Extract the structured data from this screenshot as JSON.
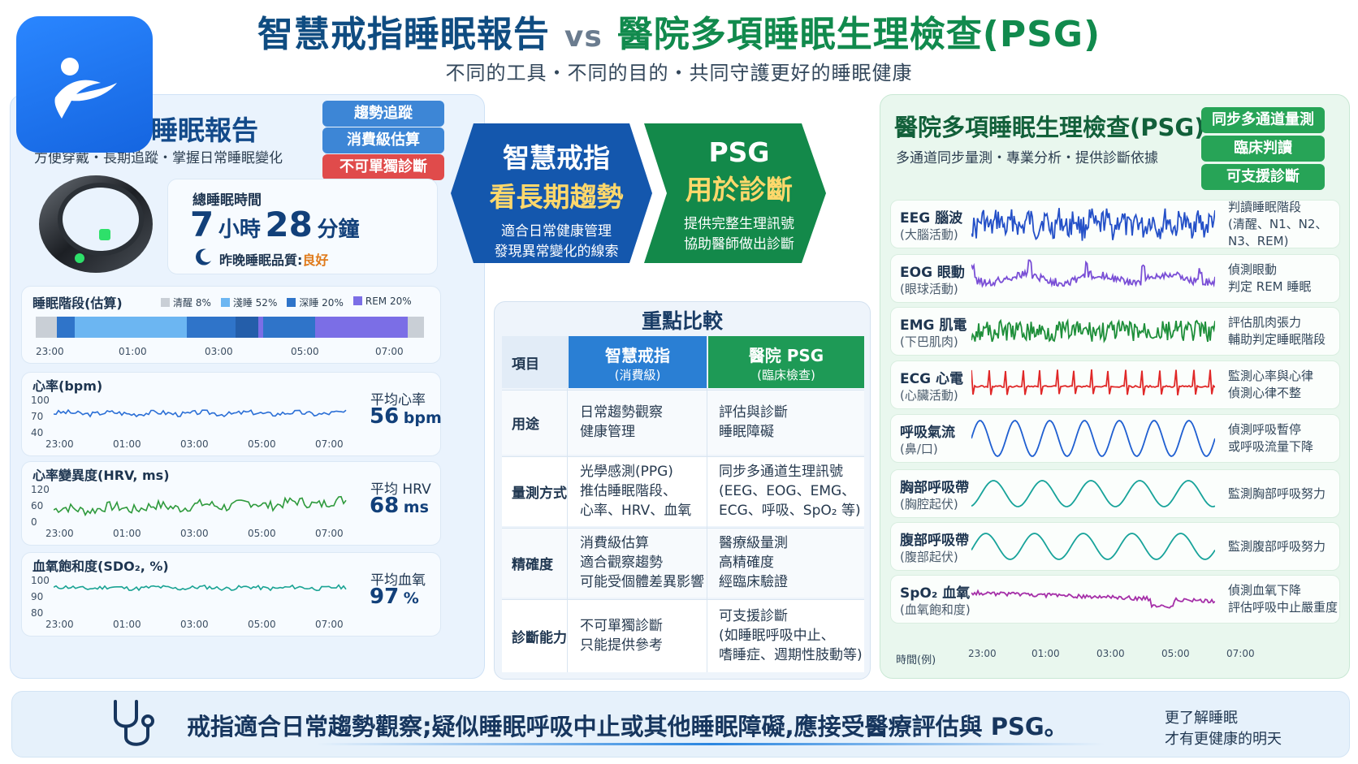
{
  "header": {
    "title_left": "智慧戒指睡眠報告",
    "vs": "vs",
    "title_right": "醫院多項睡眠生理檢查(PSG)",
    "subtitle": "不同的工具・不同的目的・共同守護更好的睡眠健康"
  },
  "left": {
    "title": "睡眠報告",
    "subtitle": "方便穿戴・長期追蹤・掌握日常睡眠變化",
    "tags": [
      "趨勢追蹤",
      "消費級估算",
      "不可單獨診斷"
    ],
    "total_sleep_label": "總睡眠時間",
    "hours": "7",
    "hours_unit": "小時",
    "minutes": "28",
    "minutes_unit": "分鐘",
    "quality_label": "昨晚睡眠品質:",
    "quality_value": "良好",
    "stages": {
      "label": "睡眠階段(估算)",
      "legend": [
        {
          "name": "清醒 8%",
          "color": "#c9cfd6"
        },
        {
          "name": "淺睡 52%",
          "color": "#6cb6f2"
        },
        {
          "name": "深睡 20%",
          "color": "#2f74c9"
        },
        {
          "name": "REM 20%",
          "color": "#7b6ee6"
        }
      ],
      "times": [
        "23:00",
        "01:00",
        "03:00",
        "05:00",
        "07:00"
      ]
    },
    "heart_rate": {
      "label": "心率(bpm)",
      "y_ticks": [
        "100",
        "70",
        "40"
      ],
      "avg_label": "平均心率",
      "avg_value": "56",
      "avg_unit": "bpm",
      "color": "#2b6fd6"
    },
    "hrv": {
      "label": "心率變異度(HRV, ms)",
      "y_ticks": [
        "120",
        "60",
        "0"
      ],
      "avg_label": "平均 HRV",
      "avg_value": "68",
      "avg_unit": "ms",
      "color": "#2e9a3c"
    },
    "spo2": {
      "label": "血氧飽和度(SDO₂, %)",
      "y_ticks": [
        "100",
        "90",
        "80"
      ],
      "avg_label": "平均血氧",
      "avg_value": "97",
      "avg_unit": "%",
      "color": "#1aa394"
    },
    "chart_times": [
      "23:00",
      "01:00",
      "03:00",
      "05:00",
      "07:00"
    ]
  },
  "center": {
    "ring_title": "智慧戒指",
    "ring_headline": "看長期趨勢",
    "ring_desc": [
      "適合日常健康管理",
      "發現異常變化的線索"
    ],
    "psg_title": "PSG",
    "psg_headline": "用於診斷",
    "psg_desc": [
      "提供完整生理訊號",
      "協助醫師做出診斷"
    ],
    "compare_title": "重點比較",
    "col_item": "項目",
    "col_ring": "智慧戒指",
    "col_ring_sub": "(消費級)",
    "col_psg": "醫院 PSG",
    "col_psg_sub": "(臨床檢查)",
    "rows": [
      {
        "label": "用途",
        "ring": [
          "日常趨勢觀察",
          "健康管理"
        ],
        "psg": [
          "評估與診斷",
          "睡眠障礙"
        ]
      },
      {
        "label": "量測方式",
        "ring": [
          "光學感測(PPG)",
          "推估睡眠階段、",
          "心率、HRV、血氧"
        ],
        "psg": [
          "同步多通道生理訊號",
          "(EEG、EOG、EMG、",
          "ECG、呼吸、SpO₂ 等)"
        ]
      },
      {
        "label": "精確度",
        "ring": [
          "消費級估算",
          "適合觀察趨勢",
          "可能受個體差異影響"
        ],
        "psg": [
          "醫療級量測",
          "高精確度",
          "經臨床驗證"
        ]
      },
      {
        "label": "診斷能力",
        "ring": [
          "不可單獨診斷",
          "只能提供參考"
        ],
        "psg": [
          "可支援診斷",
          "(如睡眠呼吸中止、",
          "嗜睡症、週期性肢動等)"
        ]
      }
    ]
  },
  "right": {
    "title": "醫院多項睡眠生理檢查(PSG)",
    "subtitle": "多通道同步量測・專業分析・提供診斷依據",
    "tags": [
      "同步多通道量測",
      "臨床判讀",
      "可支援診斷"
    ],
    "signals": [
      {
        "name": "EEG 腦波",
        "sub": "(大腦活動)",
        "desc": [
          "判讀睡眠階段",
          "(清醒、N1、N2、",
          "N3、REM)"
        ],
        "color": "#2450c8"
      },
      {
        "name": "EOG 眼動",
        "sub": "(眼球活動)",
        "desc": [
          "偵測眼動",
          "判定 REM 睡眠"
        ],
        "color": "#7a4fd6"
      },
      {
        "name": "EMG 肌電",
        "sub": "(下巴肌肉)",
        "desc": [
          "評估肌肉張力",
          "輔助判定睡眠階段"
        ],
        "color": "#1e8f3a"
      },
      {
        "name": "ECG 心電",
        "sub": "(心臟活動)",
        "desc": [
          "監測心率與心律",
          "偵測心律不整"
        ],
        "color": "#e02828"
      },
      {
        "name": "呼吸氣流",
        "sub": "(鼻/口)",
        "desc": [
          "偵測呼吸暫停",
          "或呼吸流量下降"
        ],
        "color": "#1f5fd1"
      },
      {
        "name": "胸部呼吸帶",
        "sub": "(胸腔起伏)",
        "desc": [
          "監測胸部呼吸努力"
        ],
        "color": "#17a39a"
      },
      {
        "name": "腹部呼吸帶",
        "sub": "(腹部起伏)",
        "desc": [
          "監測腹部呼吸努力"
        ],
        "color": "#17a39a"
      },
      {
        "name": "SpO₂ 血氧",
        "sub": "(血氧飽和度)",
        "desc": [
          "偵測血氧下降",
          "評估呼吸中止嚴重度"
        ],
        "color": "#a52fa8"
      }
    ],
    "time_label": "時間(例)",
    "times": [
      "23:00",
      "01:00",
      "03:00",
      "05:00",
      "07:00"
    ]
  },
  "bottom": {
    "message": "戒指適合日常趨勢觀察;疑似睡眠呼吸中止或其他睡眠障礙,應接受醫療評估與 PSG。",
    "side": [
      "更了解睡眠",
      "才有更健康的明天"
    ]
  },
  "colors": {
    "tag_blue": "#3d86d6",
    "tag_red": "#e04b4b",
    "tag_green": "#27a457",
    "ring_arrow": "#1457ad",
    "psg_arrow": "#13894a"
  }
}
